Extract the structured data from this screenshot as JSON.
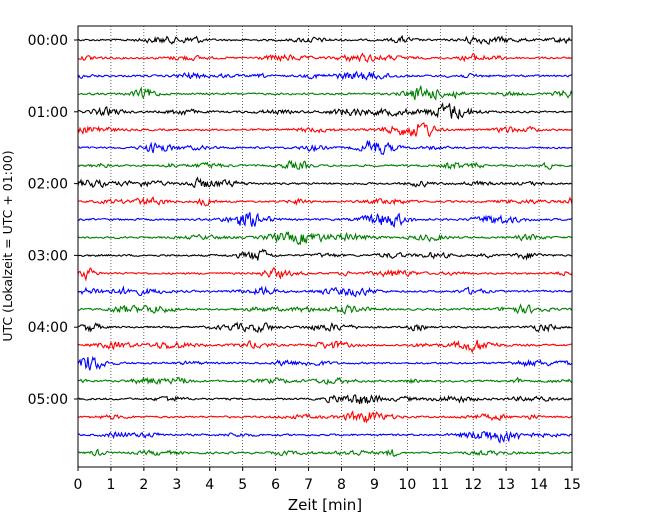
{
  "chart_data": {
    "type": "line",
    "title": "",
    "xlabel": "Zeit  [min]",
    "ylabel": "UTC (Lokalzeit = UTC + 01:00)",
    "xlim": [
      0,
      15
    ],
    "xticks": [
      "0",
      "1",
      "2",
      "3",
      "4",
      "5",
      "6",
      "7",
      "8",
      "9",
      "10",
      "11",
      "12",
      "13",
      "14",
      "15"
    ],
    "ytick_labels": [
      "00:00",
      "01:00",
      "02:00",
      "03:00",
      "04:00",
      "05:00"
    ],
    "grid": "vertical dotted",
    "trace_interval_min": 15,
    "trace_count": 24,
    "trace_colors": [
      "#000000",
      "#ff0000",
      "#0000ff",
      "#008000"
    ],
    "trace_start_times": [
      "00:00",
      "00:15",
      "00:30",
      "00:45",
      "01:00",
      "01:15",
      "01:30",
      "01:45",
      "02:00",
      "02:15",
      "02:30",
      "02:45",
      "03:00",
      "03:15",
      "03:30",
      "03:45",
      "04:00",
      "04:15",
      "04:30",
      "04:45",
      "05:00",
      "05:15",
      "05:30",
      "05:45"
    ],
    "legend": "none"
  }
}
